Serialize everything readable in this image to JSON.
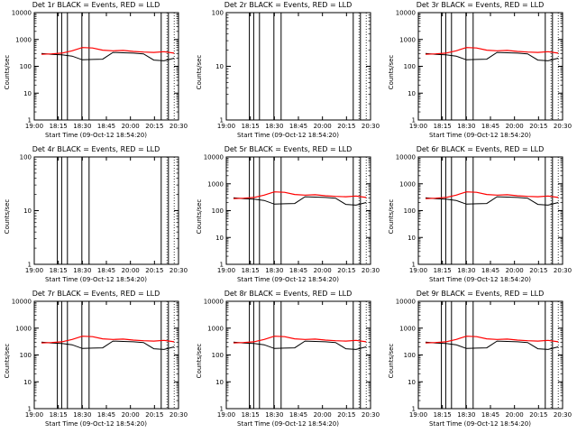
{
  "chart_data": [
    {
      "type": "line",
      "title": "Det 1r BLACK = Events, RED = LLD",
      "xlabel": "Start Time (09-Oct-12 18:54:20)",
      "ylabel": "Counts/sec",
      "yscale": "log",
      "ylim": [
        1,
        10000
      ],
      "xtick_labels": [
        "19:00",
        "18:15",
        "18:30",
        "18:45",
        "20:00",
        "20:15",
        "20:30"
      ],
      "ytick_labels": [
        "1",
        "10",
        "100",
        "1000",
        "10000"
      ],
      "series": [
        {
          "color": "#000000",
          "y": [
            300,
            280,
            270,
            240,
            175,
            180,
            185,
            330,
            320,
            310,
            290,
            170,
            160,
            200
          ],
          "dropouts": [
            0.16,
            0.19,
            0.23,
            0.33,
            0.38,
            0.88,
            0.93
          ]
        },
        {
          "color": "#ff0000",
          "y": [
            280,
            290,
            310,
            380,
            500,
            480,
            400,
            380,
            390,
            360,
            340,
            330,
            350,
            310
          ],
          "dropouts": []
        }
      ]
    },
    {
      "type": "line",
      "title": "Det 2r BLACK = Events, RED = LLD",
      "xlabel": "Start Time (09-Oct-12 18:54:20)",
      "ylabel": "Counts/sec",
      "yscale": "log",
      "ylim": [
        1,
        100
      ],
      "xtick_labels": [
        "19:00",
        "18:15",
        "18:30",
        "18:45",
        "20:00",
        "20:15",
        "20:30"
      ],
      "ytick_labels": [
        "1",
        "10",
        "100"
      ],
      "series": [
        {
          "color": "#000000",
          "y": [],
          "dropouts": [
            0.16,
            0.19,
            0.23,
            0.33,
            0.38,
            0.88,
            0.93
          ]
        }
      ]
    },
    {
      "type": "line",
      "title": "Det 3r BLACK = Events, RED = LLD",
      "xlabel": "Start Time (09-Oct-12 18:54:20)",
      "ylabel": "Counts/sec",
      "yscale": "log",
      "ylim": [
        1,
        10000
      ],
      "xtick_labels": [
        "19:00",
        "18:15",
        "18:30",
        "18:45",
        "20:00",
        "20:15",
        "20:30"
      ],
      "ytick_labels": [
        "1",
        "10",
        "100",
        "1000",
        "10000"
      ],
      "series": [
        {
          "color": "#000000",
          "y": [
            300,
            280,
            270,
            240,
            175,
            180,
            185,
            330,
            320,
            310,
            290,
            170,
            160,
            200
          ],
          "dropouts": [
            0.16,
            0.19,
            0.23,
            0.33,
            0.38,
            0.88,
            0.93
          ]
        },
        {
          "color": "#ff0000",
          "y": [
            280,
            290,
            310,
            380,
            500,
            480,
            400,
            380,
            390,
            360,
            340,
            330,
            350,
            310
          ],
          "dropouts": []
        }
      ]
    },
    {
      "type": "line",
      "title": "Det 4r BLACK = Events, RED = LLD",
      "xlabel": "Start Time (09-Oct-12 18:54:20)",
      "ylabel": "Counts/sec",
      "yscale": "log",
      "ylim": [
        1,
        100
      ],
      "xtick_labels": [
        "19:00",
        "18:15",
        "18:30",
        "18:45",
        "20:00",
        "20:15",
        "20:30"
      ],
      "ytick_labels": [
        "1",
        "10",
        "100"
      ],
      "series": [
        {
          "color": "#000000",
          "y": [],
          "dropouts": [
            0.16,
            0.19,
            0.23,
            0.33,
            0.38,
            0.88,
            0.93
          ]
        }
      ]
    },
    {
      "type": "line",
      "title": "Det 5r BLACK = Events, RED = LLD",
      "xlabel": "Start Time (09-Oct-12 18:54:20)",
      "ylabel": "Counts/sec",
      "yscale": "log",
      "ylim": [
        1,
        10000
      ],
      "xtick_labels": [
        "19:00",
        "18:15",
        "18:30",
        "18:45",
        "20:00",
        "20:15",
        "20:30"
      ],
      "ytick_labels": [
        "1",
        "10",
        "100",
        "1000",
        "10000"
      ],
      "series": [
        {
          "color": "#000000",
          "y": [
            300,
            280,
            270,
            240,
            175,
            180,
            185,
            330,
            320,
            310,
            290,
            170,
            160,
            200
          ],
          "dropouts": [
            0.16,
            0.19,
            0.23,
            0.33,
            0.38,
            0.88,
            0.93
          ]
        },
        {
          "color": "#ff0000",
          "y": [
            280,
            290,
            310,
            380,
            500,
            480,
            400,
            380,
            390,
            360,
            340,
            330,
            350,
            310
          ],
          "dropouts": []
        }
      ]
    },
    {
      "type": "line",
      "title": "Det 6r BLACK = Events, RED = LLD",
      "xlabel": "Start Time (09-Oct-12 18:54:20)",
      "ylabel": "Counts/sec",
      "yscale": "log",
      "ylim": [
        1,
        10000
      ],
      "xtick_labels": [
        "19:00",
        "18:15",
        "18:30",
        "18:45",
        "20:00",
        "20:15",
        "20:30"
      ],
      "ytick_labels": [
        "1",
        "10",
        "100",
        "1000",
        "10000"
      ],
      "series": [
        {
          "color": "#000000",
          "y": [
            300,
            280,
            270,
            240,
            175,
            180,
            185,
            330,
            320,
            310,
            290,
            170,
            160,
            200
          ],
          "dropouts": [
            0.16,
            0.19,
            0.23,
            0.33,
            0.38,
            0.88,
            0.93
          ]
        },
        {
          "color": "#ff0000",
          "y": [
            280,
            290,
            310,
            380,
            500,
            480,
            400,
            380,
            390,
            360,
            340,
            330,
            350,
            310
          ],
          "dropouts": []
        }
      ]
    },
    {
      "type": "line",
      "title": "Det 7r BLACK = Events, RED = LLD",
      "xlabel": "Start Time (09-Oct-12 18:54:20)",
      "ylabel": "Counts/sec",
      "yscale": "log",
      "ylim": [
        1,
        10000
      ],
      "xtick_labels": [
        "19:00",
        "18:15",
        "18:30",
        "18:45",
        "20:00",
        "20:15",
        "20:30"
      ],
      "ytick_labels": [
        "1",
        "10",
        "100",
        "1000",
        "10000"
      ],
      "series": [
        {
          "color": "#000000",
          "y": [
            300,
            280,
            270,
            240,
            175,
            180,
            185,
            330,
            320,
            310,
            290,
            170,
            160,
            200
          ],
          "dropouts": [
            0.16,
            0.19,
            0.23,
            0.33,
            0.38,
            0.88,
            0.93
          ]
        },
        {
          "color": "#ff0000",
          "y": [
            280,
            290,
            310,
            380,
            500,
            480,
            400,
            380,
            390,
            360,
            340,
            330,
            350,
            310
          ],
          "dropouts": []
        }
      ]
    },
    {
      "type": "line",
      "title": "Det 8r BLACK = Events, RED = LLD",
      "xlabel": "Start Time (09-Oct-12 18:54:20)",
      "ylabel": "Counts/sec",
      "yscale": "log",
      "ylim": [
        1,
        10000
      ],
      "xtick_labels": [
        "19:00",
        "18:15",
        "18:30",
        "18:45",
        "20:00",
        "20:15",
        "20:30"
      ],
      "ytick_labels": [
        "1",
        "10",
        "100",
        "1000",
        "10000"
      ],
      "series": [
        {
          "color": "#000000",
          "y": [
            300,
            280,
            270,
            240,
            175,
            180,
            185,
            330,
            320,
            310,
            290,
            170,
            160,
            200
          ],
          "dropouts": [
            0.16,
            0.19,
            0.23,
            0.33,
            0.38,
            0.88,
            0.93
          ]
        },
        {
          "color": "#ff0000",
          "y": [
            280,
            290,
            310,
            380,
            500,
            480,
            400,
            380,
            390,
            360,
            340,
            330,
            350,
            310
          ],
          "dropouts": []
        }
      ]
    },
    {
      "type": "line",
      "title": "Det 9r BLACK = Events, RED = LLD",
      "xlabel": "Start Time (09-Oct-12 18:54:20)",
      "ylabel": "Counts/sec",
      "yscale": "log",
      "ylim": [
        1,
        10000
      ],
      "xtick_labels": [
        "19:00",
        "18:15",
        "18:30",
        "18:45",
        "20:00",
        "20:15",
        "20:30"
      ],
      "ytick_labels": [
        "1",
        "10",
        "100",
        "1000",
        "10000"
      ],
      "series": [
        {
          "color": "#000000",
          "y": [
            300,
            280,
            270,
            240,
            175,
            180,
            185,
            330,
            320,
            310,
            290,
            170,
            160,
            200
          ],
          "dropouts": [
            0.16,
            0.19,
            0.23,
            0.33,
            0.38,
            0.88,
            0.93
          ]
        },
        {
          "color": "#ff0000",
          "y": [
            280,
            290,
            310,
            380,
            500,
            480,
            400,
            380,
            390,
            360,
            340,
            330,
            350,
            310
          ],
          "dropouts": []
        }
      ]
    }
  ]
}
